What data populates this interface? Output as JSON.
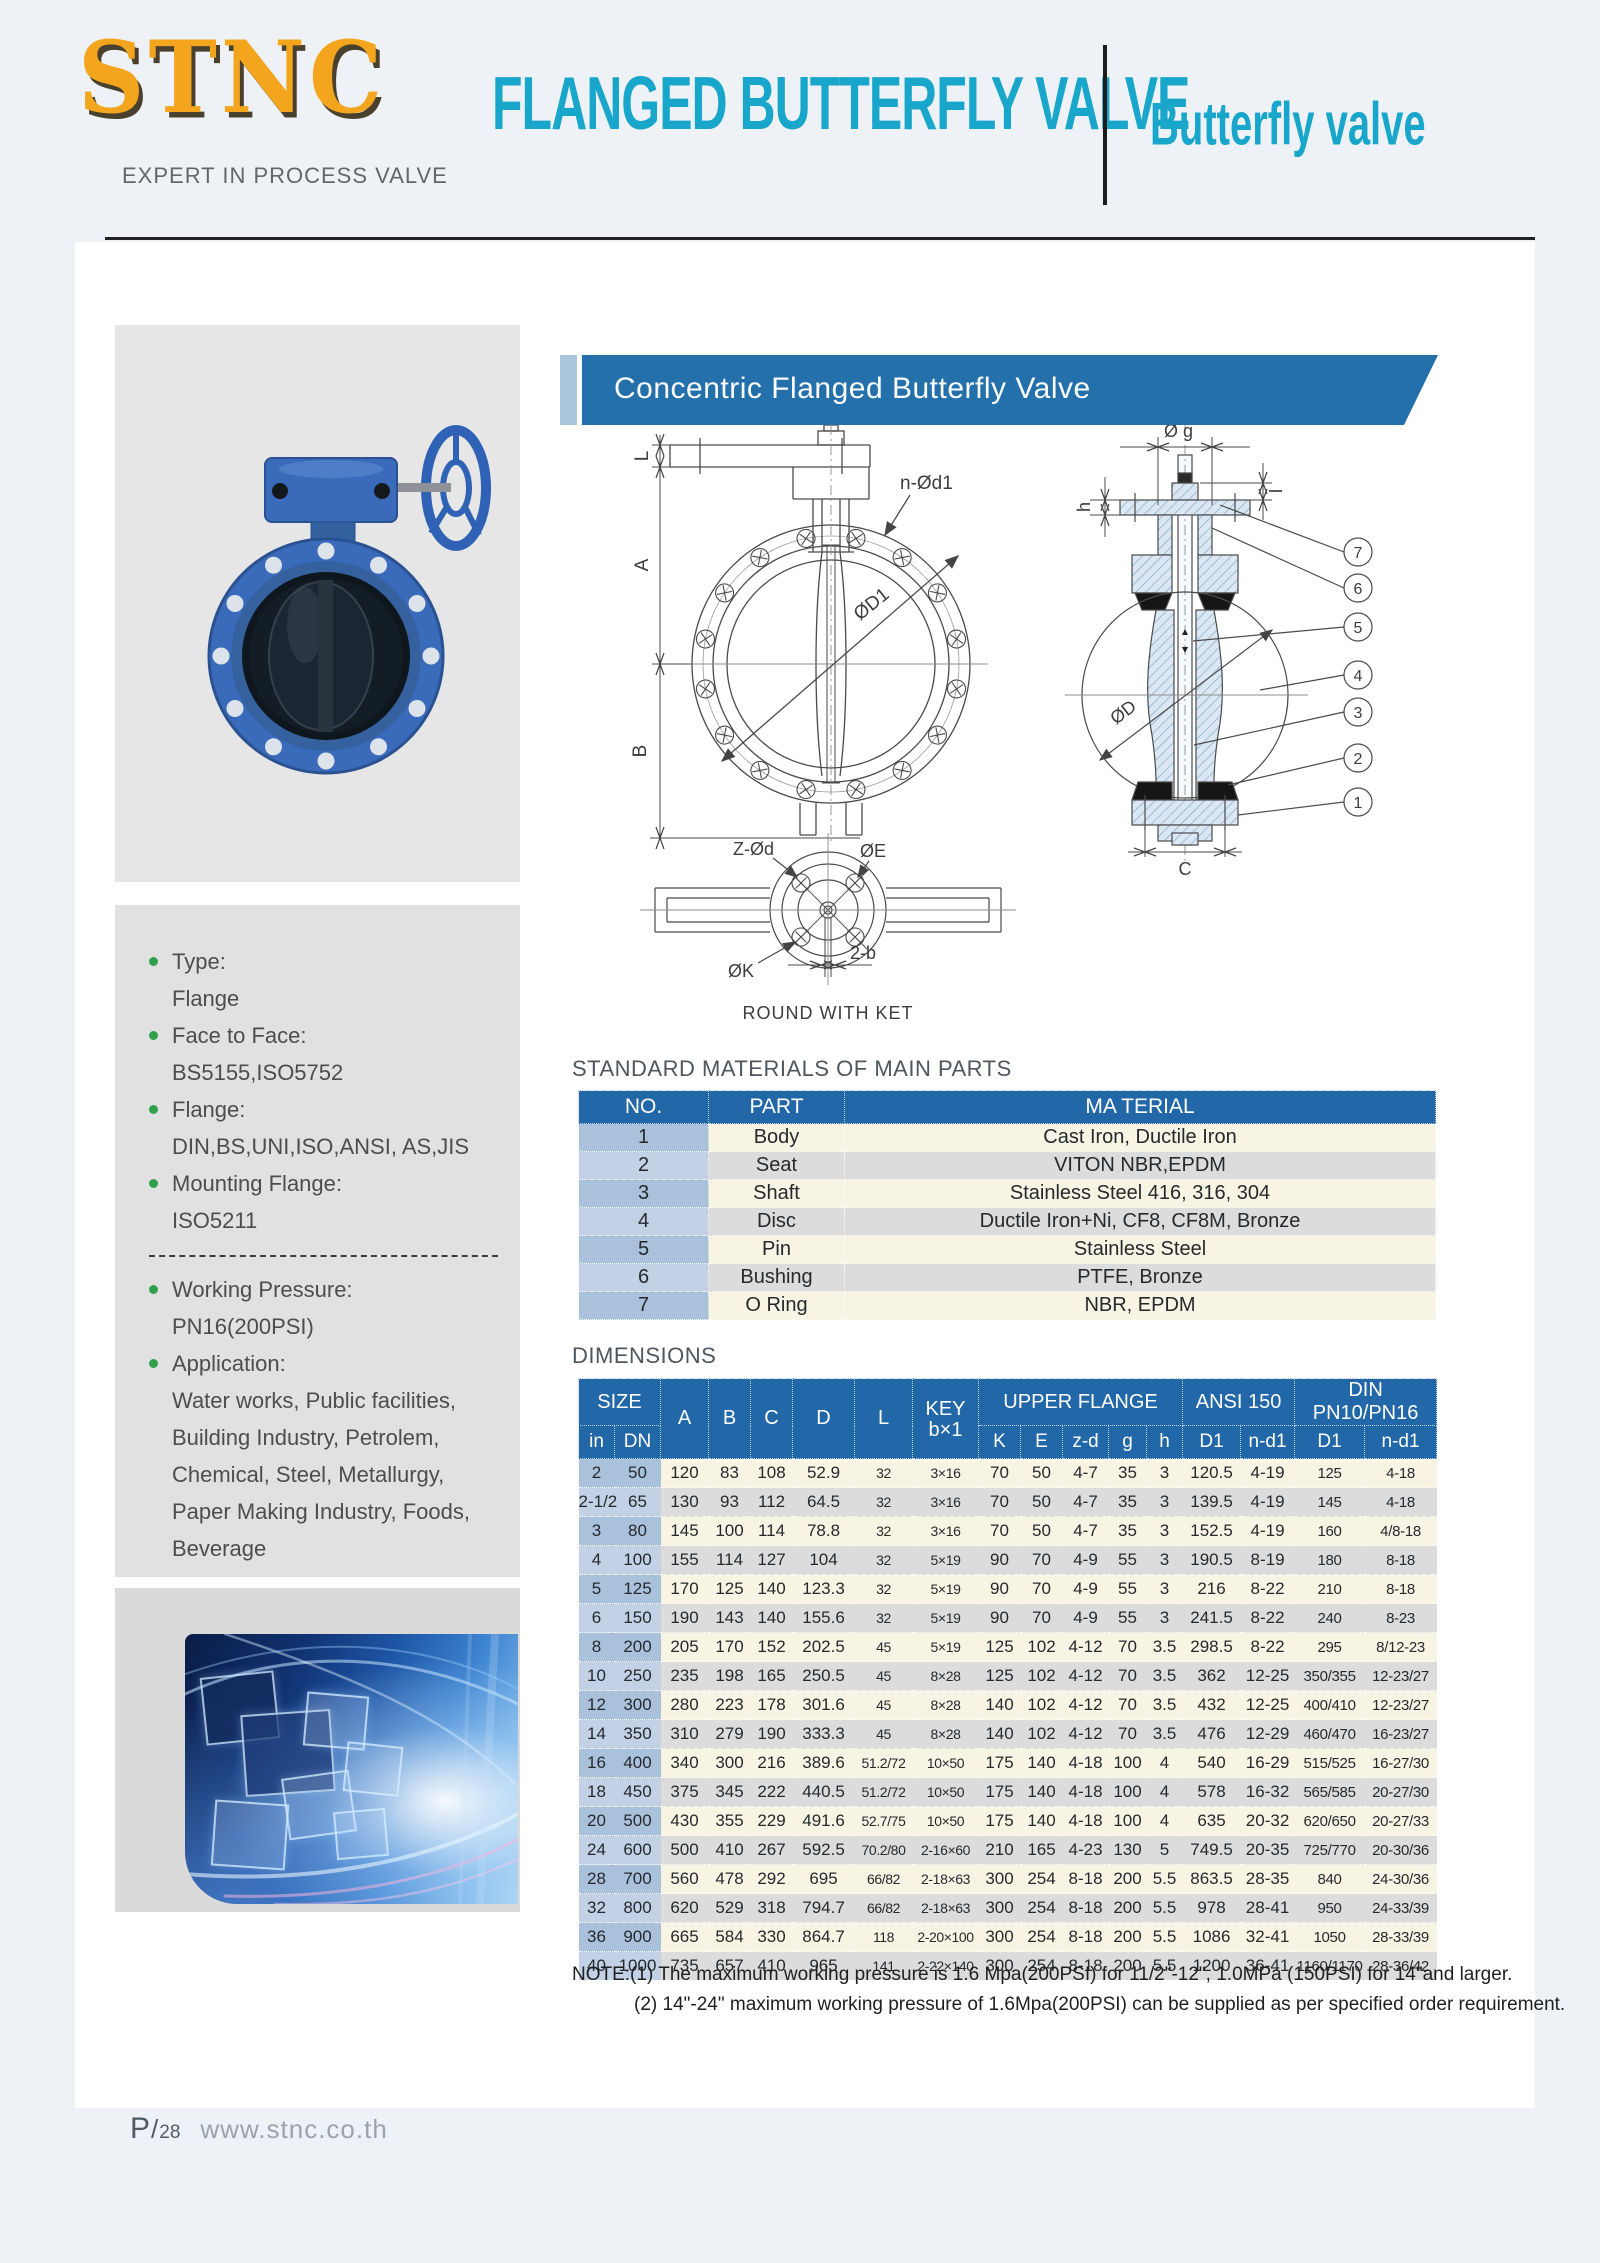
{
  "header": {
    "logo": "STNC",
    "tagline": "EXPERT IN PROCESS VALVE",
    "title": "FLANGED BUTTERFLY VALVE",
    "subtitle": "Butterfly valve"
  },
  "sidebar": {
    "specs_top": [
      {
        "label": "Type:",
        "value": "Flange"
      },
      {
        "label": "Face to Face:",
        "value": "BS5155,ISO5752"
      },
      {
        "label": "Flange:",
        "value": "DIN,BS,UNI,ISO,ANSI, AS,JIS"
      },
      {
        "label": "Mounting Flange:",
        "value": "ISO5211"
      }
    ],
    "specs_bottom": [
      {
        "label": "Working Pressure:",
        "value": "PN16(200PSI)"
      },
      {
        "label": "Application:",
        "value": "Water works, Public facilities, Building Industry, Petrolem, Chemical, Steel, Metallurgy, Paper Making Industry, Foods, Beverage"
      }
    ]
  },
  "banner": {
    "title": "Concentric Flanged Butterfly Valve"
  },
  "drawings": {
    "front": {
      "dim_l": "L",
      "dim_a": "A",
      "dim_b": "B",
      "bolt_label": "n-Ød1",
      "diameter_label": "ØD1"
    },
    "section": {
      "dia_g": "Ø g",
      "dim_h": "h",
      "dim_i": "I",
      "dia_d": "ØD",
      "dim_c": "C",
      "callouts": [
        "7",
        "6",
        "5",
        "4",
        "3",
        "2",
        "1"
      ]
    },
    "top": {
      "bolt_label": "Z-Ød",
      "dia_e": "ØE",
      "dia_k": "ØK",
      "key_width": "2-b",
      "caption": "ROUND WITH KET"
    }
  },
  "materials": {
    "heading": "STANDARD MATERIALS OF MAIN PARTS",
    "columns": [
      "NO.",
      "PART",
      "MA TERIAL"
    ],
    "rows": [
      [
        "1",
        "Body",
        "Cast Iron, Ductile Iron"
      ],
      [
        "2",
        "Seat",
        "VITON NBR,EPDM"
      ],
      [
        "3",
        "Shaft",
        "Stainless Steel 416, 316, 304"
      ],
      [
        "4",
        "Disc",
        "Ductile Iron+Ni, CF8, CF8M, Bronze"
      ],
      [
        "5",
        "Pin",
        "Stainless Steel"
      ],
      [
        "6",
        "Bushing",
        "PTFE, Bronze"
      ],
      [
        "7",
        "O Ring",
        "NBR, EPDM"
      ]
    ]
  },
  "dimensions": {
    "heading": "DIMENSIONS",
    "header": {
      "size": "SIZE",
      "in": "in",
      "dn": "DN",
      "a": "A",
      "b": "B",
      "c": "C",
      "d": "D",
      "l": "L",
      "key_line1": "KEY",
      "key_line2": "b×1",
      "upper_flange": "UPPER FLANGE",
      "k": "K",
      "e": "E",
      "zd": "z-d",
      "g": "g",
      "h": "h",
      "ansi": "ANSI 150",
      "ansi_d1": "D1",
      "ansi_nd1": "n-d1",
      "din": "DIN PN10/PN16",
      "din_d1": "D1",
      "din_nd1": "n-d1"
    },
    "rows": [
      [
        "2",
        "50",
        "120",
        "83",
        "108",
        "52.9",
        "32",
        "3×16",
        "70",
        "50",
        "4-7",
        "35",
        "3",
        "120.5",
        "4-19",
        "125",
        "4-18"
      ],
      [
        "2-1/2",
        "65",
        "130",
        "93",
        "112",
        "64.5",
        "32",
        "3×16",
        "70",
        "50",
        "4-7",
        "35",
        "3",
        "139.5",
        "4-19",
        "145",
        "4-18"
      ],
      [
        "3",
        "80",
        "145",
        "100",
        "114",
        "78.8",
        "32",
        "3×16",
        "70",
        "50",
        "4-7",
        "35",
        "3",
        "152.5",
        "4-19",
        "160",
        "4/8-18"
      ],
      [
        "4",
        "100",
        "155",
        "114",
        "127",
        "104",
        "32",
        "5×19",
        "90",
        "70",
        "4-9",
        "55",
        "3",
        "190.5",
        "8-19",
        "180",
        "8-18"
      ],
      [
        "5",
        "125",
        "170",
        "125",
        "140",
        "123.3",
        "32",
        "5×19",
        "90",
        "70",
        "4-9",
        "55",
        "3",
        "216",
        "8-22",
        "210",
        "8-18"
      ],
      [
        "6",
        "150",
        "190",
        "143",
        "140",
        "155.6",
        "32",
        "5×19",
        "90",
        "70",
        "4-9",
        "55",
        "3",
        "241.5",
        "8-22",
        "240",
        "8-23"
      ],
      [
        "8",
        "200",
        "205",
        "170",
        "152",
        "202.5",
        "45",
        "5×19",
        "125",
        "102",
        "4-12",
        "70",
        "3.5",
        "298.5",
        "8-22",
        "295",
        "8/12-23"
      ],
      [
        "10",
        "250",
        "235",
        "198",
        "165",
        "250.5",
        "45",
        "8×28",
        "125",
        "102",
        "4-12",
        "70",
        "3.5",
        "362",
        "12-25",
        "350/355",
        "12-23/27"
      ],
      [
        "12",
        "300",
        "280",
        "223",
        "178",
        "301.6",
        "45",
        "8×28",
        "140",
        "102",
        "4-12",
        "70",
        "3.5",
        "432",
        "12-25",
        "400/410",
        "12-23/27"
      ],
      [
        "14",
        "350",
        "310",
        "279",
        "190",
        "333.3",
        "45",
        "8×28",
        "140",
        "102",
        "4-12",
        "70",
        "3.5",
        "476",
        "12-29",
        "460/470",
        "16-23/27"
      ],
      [
        "16",
        "400",
        "340",
        "300",
        "216",
        "389.6",
        "51.2/72",
        "10×50",
        "175",
        "140",
        "4-18",
        "100",
        "4",
        "540",
        "16-29",
        "515/525",
        "16-27/30"
      ],
      [
        "18",
        "450",
        "375",
        "345",
        "222",
        "440.5",
        "51.2/72",
        "10×50",
        "175",
        "140",
        "4-18",
        "100",
        "4",
        "578",
        "16-32",
        "565/585",
        "20-27/30"
      ],
      [
        "20",
        "500",
        "430",
        "355",
        "229",
        "491.6",
        "52.7/75",
        "10×50",
        "175",
        "140",
        "4-18",
        "100",
        "4",
        "635",
        "20-32",
        "620/650",
        "20-27/33"
      ],
      [
        "24",
        "600",
        "500",
        "410",
        "267",
        "592.5",
        "70.2/80",
        "2-16×60",
        "210",
        "165",
        "4-23",
        "130",
        "5",
        "749.5",
        "20-35",
        "725/770",
        "20-30/36"
      ],
      [
        "28",
        "700",
        "560",
        "478",
        "292",
        "695",
        "66/82",
        "2-18×63",
        "300",
        "254",
        "8-18",
        "200",
        "5.5",
        "863.5",
        "28-35",
        "840",
        "24-30/36"
      ],
      [
        "32",
        "800",
        "620",
        "529",
        "318",
        "794.7",
        "66/82",
        "2-18×63",
        "300",
        "254",
        "8-18",
        "200",
        "5.5",
        "978",
        "28-41",
        "950",
        "24-33/39"
      ],
      [
        "36",
        "900",
        "665",
        "584",
        "330",
        "864.7",
        "118",
        "2-20×100",
        "300",
        "254",
        "8-18",
        "200",
        "5.5",
        "1086",
        "32-41",
        "1050",
        "28-33/39"
      ],
      [
        "40",
        "1000",
        "735",
        "657",
        "410",
        "965",
        "141",
        "2-22×140",
        "300",
        "254",
        "8-18",
        "200",
        "5.5",
        "1200",
        "36-41",
        "1160/1170",
        "28-36/42"
      ]
    ]
  },
  "notes": [
    "NOTE:(1) The maximum working pressure is 1.6 Mpa(200PSI) for 11/2\"-12\", 1.0MPa (150PSI) for 14\"and larger.",
    "(2) 14\"-24\" maximum working pressure of 1.6Mpa(200PSI) can be supplied as per specified order requirement."
  ],
  "footer": {
    "page": "P",
    "slash": "/",
    "number": "28",
    "website": "www.stnc.co.th"
  }
}
